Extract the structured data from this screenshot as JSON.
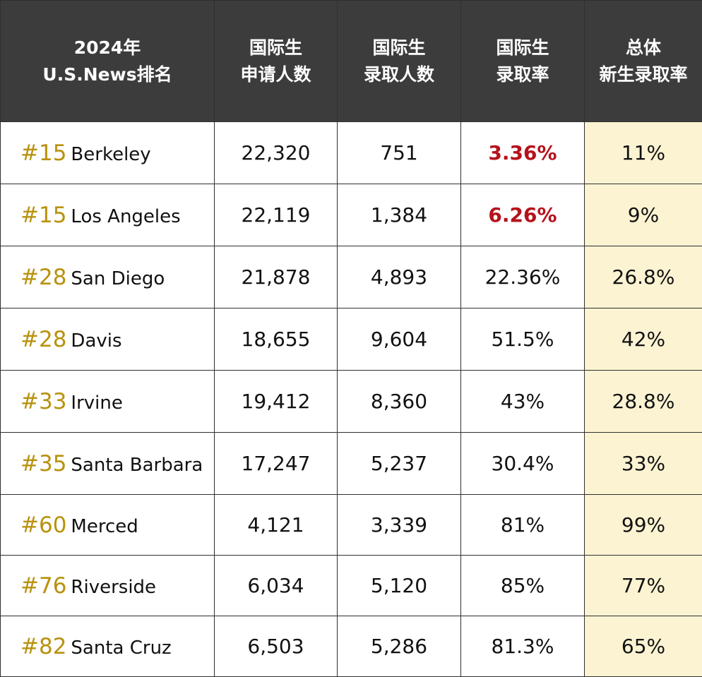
{
  "headers": [
    {
      "line1": "2024年",
      "line2": "U.S.News排名"
    },
    {
      "line1": "国际生",
      "line2": "申请人数"
    },
    {
      "line1": "国际生",
      "line2": "录取人数"
    },
    {
      "line1": "国际生",
      "line2": "录取率"
    },
    {
      "line1": "总体",
      "line2": "新生录取率"
    }
  ],
  "rows": [
    {
      "rank": "#15",
      "campus": "Berkeley",
      "applicants": "22,320",
      "admitted": "751",
      "intl_rate": "3.36%",
      "overall_rate": "11%"
    },
    {
      "rank": "#15",
      "campus": "Los Angeles",
      "applicants": "22,119",
      "admitted": "1,384",
      "intl_rate": "6.26%",
      "overall_rate": "9%"
    },
    {
      "rank": "#28",
      "campus": "San Diego",
      "applicants": "21,878",
      "admitted": "4,893",
      "intl_rate": "22.36%",
      "overall_rate": "26.8%"
    },
    {
      "rank": "#28",
      "campus": "Davis",
      "applicants": "18,655",
      "admitted": "9,604",
      "intl_rate": "51.5%",
      "overall_rate": "42%"
    },
    {
      "rank": "#33",
      "campus": "Irvine",
      "applicants": "19,412",
      "admitted": "8,360",
      "intl_rate": "43%",
      "overall_rate": "28.8%"
    },
    {
      "rank": "#35",
      "campus": "Santa Barbara",
      "applicants": "17,247",
      "admitted": "5,237",
      "intl_rate": "30.4%",
      "overall_rate": "33%"
    },
    {
      "rank": "#60",
      "campus": "Merced",
      "applicants": "4,121",
      "admitted": "3,339",
      "intl_rate": "81%",
      "overall_rate": "99%"
    },
    {
      "rank": "#76",
      "campus": "Riverside",
      "applicants": "6,034",
      "admitted": "5,120",
      "intl_rate": "85%",
      "overall_rate": "77%"
    },
    {
      "rank": "#82",
      "campus": "Santa Cruz",
      "applicants": "6,503",
      "admitted": "5,286",
      "intl_rate": "81.3%",
      "overall_rate": "65%"
    }
  ],
  "colors": {
    "header_bg": "#3c3c3c",
    "rank_gold": "#b8920e",
    "highlight_red": "#b5121b",
    "overall_bg": "#fcf3d2"
  }
}
